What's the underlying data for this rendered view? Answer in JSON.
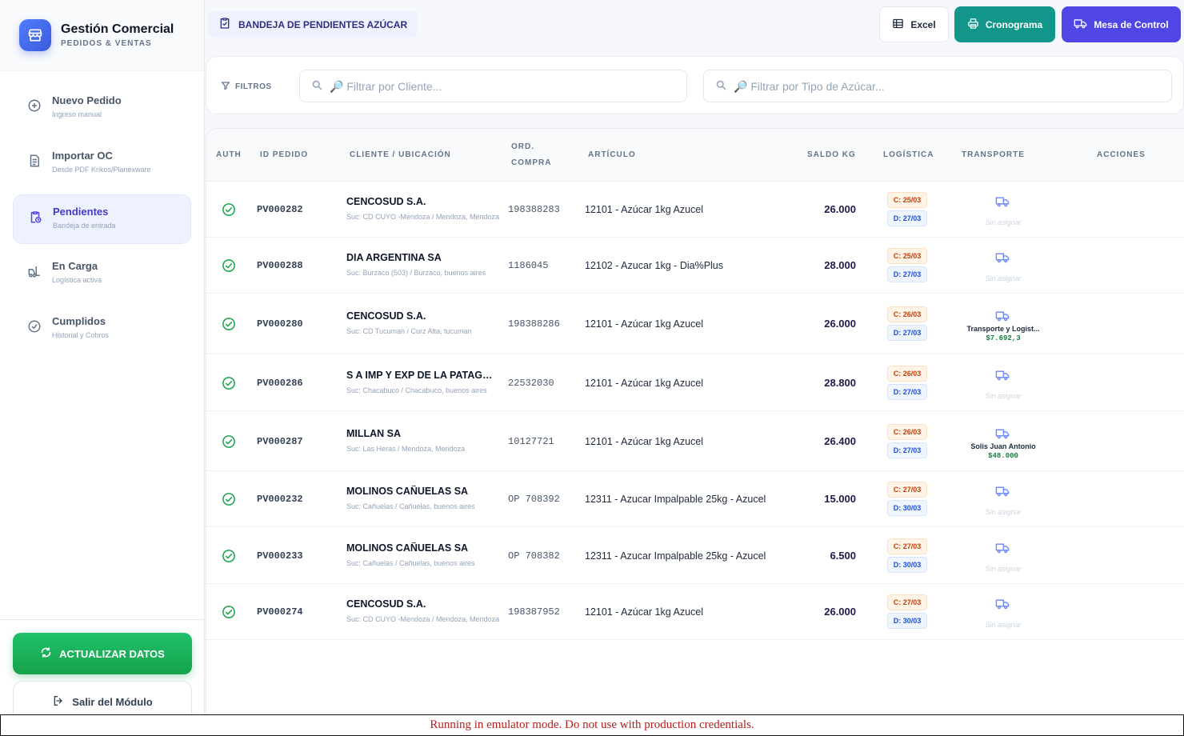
{
  "brand": {
    "title": "Gestión Comercial",
    "subtitle": "PEDIDOS & VENTAS"
  },
  "nav": [
    {
      "label": "Nuevo Pedido",
      "desc": "Ingreso manual",
      "icon": "plus-circle-icon"
    },
    {
      "label": "Importar OC",
      "desc": "Desde PDF Krikos/Planexware",
      "icon": "document-import-icon"
    },
    {
      "label": "Pendientes",
      "desc": "Bandeja de entrada",
      "icon": "clipboard-clock-icon",
      "active": true
    },
    {
      "label": "En Carga",
      "desc": "Logística activa",
      "icon": "forklift-icon"
    },
    {
      "label": "Cumplidos",
      "desc": "Historial y Cobros",
      "icon": "check-circle-icon"
    }
  ],
  "sidebar_bottom": {
    "refresh": "ACTUALIZAR DATOS",
    "exit": "Salir del Módulo"
  },
  "header": {
    "page_title": "BANDEJA DE PENDIENTES AZÚCAR",
    "excel": "Excel",
    "cronograma": "Cronograma",
    "mesa": "Mesa de Control"
  },
  "filters": {
    "label": "FILTROS",
    "cliente_placeholder": "🔎 Filtrar por Cliente...",
    "tipo_placeholder": "🔎 Filtrar por Tipo de Azúcar..."
  },
  "table": {
    "headers": {
      "auth": "AUTH",
      "id": "ID PEDIDO",
      "cliente": "CLIENTE / UBICACIÓN",
      "orden1": "ORD.",
      "orden2": "COMPRA",
      "articulo": "ARTÍCULO",
      "saldo": "SALDO KG",
      "logistica": "LOGÍSTICA",
      "transporte": "TRANSPORTE",
      "acciones": "ACCIONES"
    },
    "rows": [
      {
        "id": "PV000282",
        "cliente": "CENCOSUD S.A.",
        "ubicacion": "Suc: CD CUYO -Mendoza / Mendoza, Mendoza",
        "orden": "198388283",
        "articulo": "12101 - Azúcar 1kg Azucel",
        "saldo": "26.000",
        "carga": "C: 25/03",
        "descarga": "D: 27/03",
        "transporte": "Sin asignar",
        "precio": ""
      },
      {
        "id": "PV000288",
        "cliente": "DIA ARGENTINA SA",
        "ubicacion": "Suc: Burzaco (503) / Burzaco, buenos aires",
        "orden": "1186045",
        "articulo": "12102 - Azucar 1kg - Dia%Plus",
        "saldo": "28.000",
        "carga": "C: 25/03",
        "descarga": "D: 27/03",
        "transporte": "Sin asignar",
        "precio": ""
      },
      {
        "id": "PV000280",
        "cliente": "CENCOSUD S.A.",
        "ubicacion": "Suc: CD Tucuman / Curz Alta, tucuman",
        "orden": "198388286",
        "articulo": "12101 - Azúcar 1kg Azucel",
        "saldo": "26.000",
        "carga": "C: 26/03",
        "descarga": "D: 27/03",
        "transporte": "Transporte y Logist...",
        "precio": "$7.692,3"
      },
      {
        "id": "PV000286",
        "cliente": "S A IMP Y EXP DE LA PATAGO...",
        "ubicacion": "Suc: Chacabuco / Chacabuco, buenos aires",
        "orden": "22532030",
        "articulo": "12101 - Azúcar 1kg Azucel",
        "saldo": "28.800",
        "carga": "C: 26/03",
        "descarga": "D: 27/03",
        "transporte": "Sin asignar",
        "precio": ""
      },
      {
        "id": "PV000287",
        "cliente": "MILLAN SA",
        "ubicacion": "Suc: Las Heras / Mendoza, Mendoza",
        "orden": "10127721",
        "articulo": "12101 - Azúcar 1kg Azucel",
        "saldo": "26.400",
        "carga": "C: 26/03",
        "descarga": "D: 27/03",
        "transporte": "Solis Juan Antonio",
        "precio": "$48.000"
      },
      {
        "id": "PV000232",
        "cliente": "MOLINOS CAÑUELAS SA",
        "ubicacion": "Suc: Cañuelas / Cañuelas, buenos aires",
        "orden": "OP 708392",
        "articulo": "12311 - Azucar Impalpable 25kg - Azucel",
        "saldo": "15.000",
        "carga": "C: 27/03",
        "descarga": "D: 30/03",
        "transporte": "Sin asignar",
        "precio": ""
      },
      {
        "id": "PV000233",
        "cliente": "MOLINOS CAÑUELAS SA",
        "ubicacion": "Suc: Cañuelas / Cañuelas, buenos aires",
        "orden": "OP 708382",
        "articulo": "12311 - Azucar Impalpable 25kg - Azucel",
        "saldo": "6.500",
        "carga": "C: 27/03",
        "descarga": "D: 30/03",
        "transporte": "Sin asignar",
        "precio": ""
      },
      {
        "id": "PV000274",
        "cliente": "CENCOSUD S.A.",
        "ubicacion": "Suc: CD CUYO -Mendoza / Mendoza, Mendoza",
        "orden": "198387952",
        "articulo": "12101 - Azúcar 1kg Azucel",
        "saldo": "26.000",
        "carga": "C: 27/03",
        "descarga": "D: 30/03",
        "transporte": "Sin asignar",
        "precio": ""
      }
    ]
  },
  "emulator_notice": "Running in emulator mode. Do not use with production credentials.",
  "colors": {
    "primary": "#4f46e5",
    "teal": "#12968a",
    "green": "#16a34a",
    "navy": "#1e1b4b"
  }
}
